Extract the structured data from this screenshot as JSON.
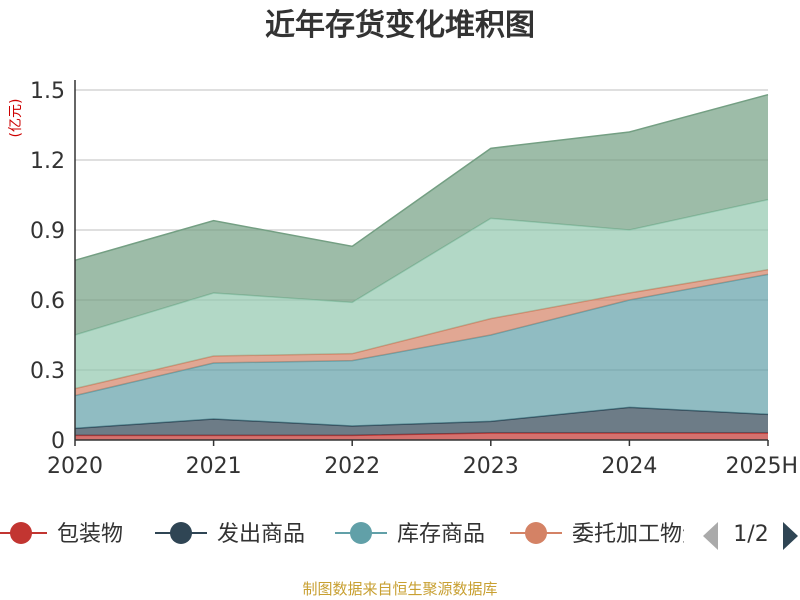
{
  "chart_data": {
    "type": "area",
    "stacked": true,
    "title": "近年存货变化堆积图",
    "unit_label": "(亿元)",
    "categories": [
      "2020",
      "2021",
      "2022",
      "2023",
      "2024",
      "2025H"
    ],
    "ylim": [
      0,
      1.5
    ],
    "yticks": [
      "0",
      "0.3",
      "0.6",
      "0.9",
      "1.2",
      "1.5"
    ],
    "grid": true,
    "legend_position": "bottom",
    "legend_page": "1/2",
    "series": [
      {
        "name": "包装物",
        "color": "#c23531",
        "values": [
          0.02,
          0.02,
          0.02,
          0.03,
          0.03,
          0.03
        ]
      },
      {
        "name": "发出商品",
        "color": "#2f4554",
        "values": [
          0.03,
          0.07,
          0.04,
          0.05,
          0.11,
          0.08
        ]
      },
      {
        "name": "库存商品",
        "color": "#61a0a8",
        "values": [
          0.14,
          0.24,
          0.28,
          0.37,
          0.46,
          0.6
        ]
      },
      {
        "name": "委托加工物资",
        "color": "#d48265",
        "values": [
          0.03,
          0.03,
          0.03,
          0.07,
          0.03,
          0.02
        ]
      },
      {
        "color": "#91c7ae",
        "values": [
          0.23,
          0.27,
          0.22,
          0.43,
          0.27,
          0.3
        ]
      },
      {
        "color": "#749f83",
        "values": [
          0.32,
          0.31,
          0.24,
          0.3,
          0.42,
          0.45
        ]
      }
    ]
  },
  "footer": {
    "source": "制图数据来自恒生聚源数据库"
  }
}
